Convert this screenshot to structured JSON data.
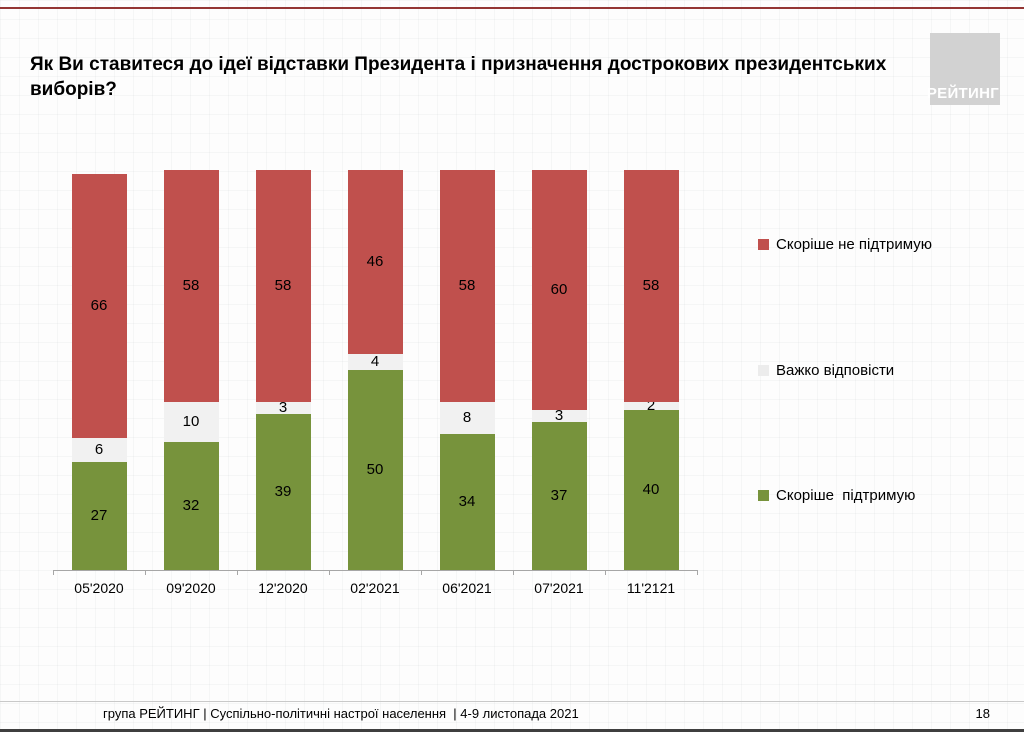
{
  "slide": {
    "title": "Як Ви ставитеся до ідеї відставки Президента і призначення дострокових президентських виборів?",
    "logo_text": "РЕЙТИНГ",
    "footer_text": "група РЕЙТИНГ | Суспільно-політичні настрої населення  | 4-9 листопада 2021",
    "page_number": "18"
  },
  "colors": {
    "top_rule": "#943634",
    "bottom_rule": "#3f3f3f",
    "support_green": "#77933C",
    "hard_to_answer_gray": "#F1F1F1",
    "not_support_red": "#C0504D",
    "logo_gray": "#D2D2D2"
  },
  "chart_data": {
    "type": "bar",
    "stacked": true,
    "title": "Як Ви ставитеся до ідеї відставки Президента і призначення дострокових президентських виборів?",
    "categories": [
      "05'2020",
      "09'2020",
      "12'2020",
      "02'2021",
      "06'2021",
      "07'2021",
      "11'2121"
    ],
    "series": [
      {
        "name": "Скоріше підтримую",
        "color": "#77933C",
        "values": [
          27,
          32,
          39,
          50,
          34,
          37,
          40
        ]
      },
      {
        "name": "Важко відповісти",
        "color": "#F1F1F1",
        "values": [
          6,
          10,
          3,
          4,
          8,
          3,
          2
        ]
      },
      {
        "name": "Скоріше не підтримую",
        "color": "#C0504D",
        "values": [
          66,
          58,
          58,
          46,
          58,
          60,
          58
        ]
      }
    ],
    "legend": [
      {
        "label": "Скоріше не підтримую",
        "color": "#C0504D"
      },
      {
        "label": "Важко відповісти",
        "color": "#ECECEC"
      },
      {
        "label": "Скоріше  підтримую",
        "color": "#77933C"
      }
    ],
    "legend_position": "right",
    "xlabel": "",
    "ylabel": "",
    "ylim": [
      0,
      100
    ],
    "grid": false,
    "value_labels": true
  }
}
